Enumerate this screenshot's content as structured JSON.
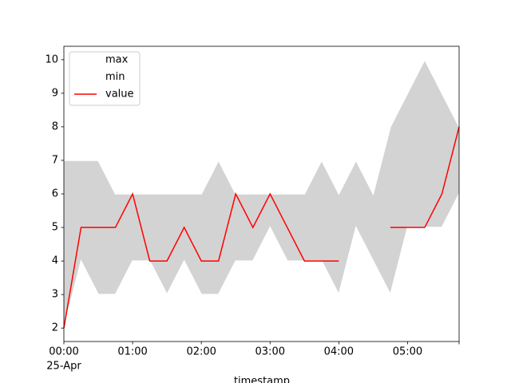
{
  "chart_data": {
    "type": "line",
    "xlabel": "timestamp",
    "x": [
      "00:00",
      "00:15",
      "00:30",
      "00:45",
      "01:00",
      "01:15",
      "01:30",
      "01:45",
      "02:00",
      "02:15",
      "02:30",
      "02:45",
      "03:00",
      "03:15",
      "03:30",
      "03:45",
      "04:00",
      "04:15",
      "04:30",
      "04:45",
      "05:00",
      "05:15",
      "05:30",
      "05:45"
    ],
    "x_date_label": "25-Apr",
    "xlim": [
      "00:00",
      "05:45"
    ],
    "xticks": [
      "00:00",
      "01:00",
      "02:00",
      "03:00",
      "04:00",
      "05:00"
    ],
    "ylim": [
      1.6,
      10.4
    ],
    "yticks": [
      2,
      3,
      4,
      5,
      6,
      7,
      8,
      9,
      10
    ],
    "fill_color": "#d3d3d3",
    "legend": "upper left",
    "series": [
      {
        "name": "max",
        "color": "#ffffff",
        "values": [
          7,
          7,
          7,
          6,
          6,
          6,
          6,
          6,
          6,
          7,
          6,
          6,
          6,
          6,
          6,
          7,
          6,
          7,
          6,
          8,
          9,
          10,
          9,
          8
        ]
      },
      {
        "name": "min",
        "color": "#ffffff",
        "values": [
          2,
          4,
          3,
          3,
          4,
          4,
          3,
          4,
          3,
          3,
          4,
          4,
          5,
          4,
          4,
          4,
          3,
          5,
          4,
          3,
          5,
          5,
          5,
          6
        ]
      },
      {
        "name": "value",
        "color": "#ff0000",
        "values": [
          2,
          5,
          5,
          5,
          6,
          4,
          4,
          5,
          4,
          4,
          6,
          5,
          6,
          5,
          4,
          4,
          4,
          null,
          null,
          5,
          5,
          5,
          6,
          8
        ]
      }
    ]
  }
}
